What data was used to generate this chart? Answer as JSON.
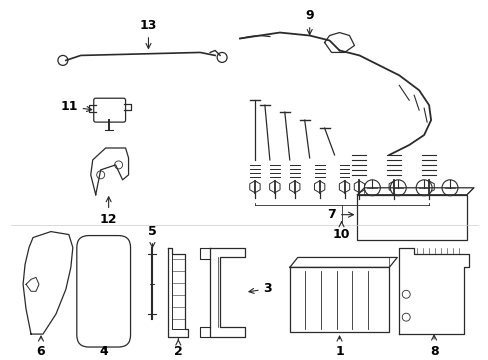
{
  "background": "#ffffff",
  "line_color": "#2a2a2a",
  "fig_width": 4.89,
  "fig_height": 3.6,
  "dpi": 100
}
